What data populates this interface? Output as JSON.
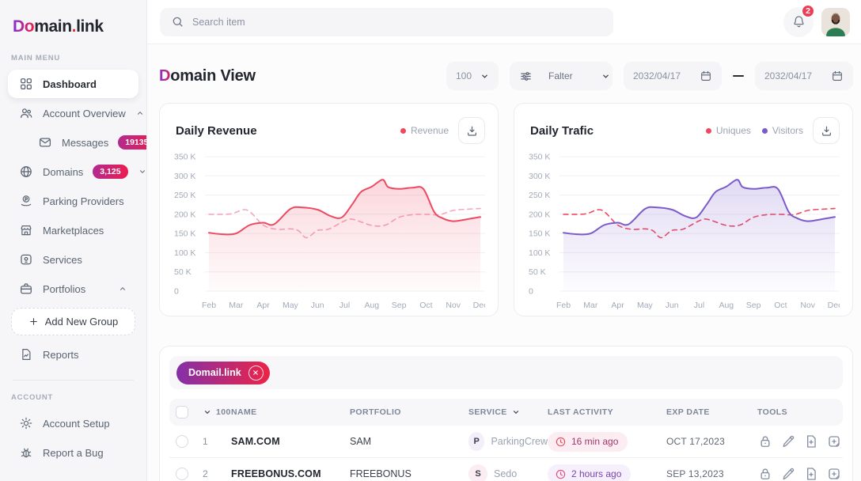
{
  "brand": {
    "logo_do": "Do",
    "logo_main": "main",
    "logo_dot": ".",
    "logo_link": "link"
  },
  "sidebar": {
    "main_section_label": "MAIN MENU",
    "account_section_label": "ACCOUNT",
    "dashboard": "Dashboard",
    "account_overview": "Account Overview",
    "messages": "Messages",
    "messages_badge": "19135",
    "domains": "Domains",
    "domains_badge": "3,125",
    "parking_providers": "Parking Providers",
    "marketplaces": "Marketplaces",
    "services": "Services",
    "portfolios": "Portfolios",
    "add_new_group": "Add New Group",
    "reports": "Reports",
    "account_setup": "Account Setup",
    "report_a_bug": "Report a Bug"
  },
  "topbar": {
    "search_placeholder": "Search item",
    "notification_count": "2"
  },
  "page_header": {
    "title_accent": "D",
    "title_rest": "omain View"
  },
  "filters": {
    "page_size": "100",
    "filter_label": "Falter",
    "date_from": "2032/04/17",
    "date_to": "2032/04/17"
  },
  "chart_data": [
    {
      "type": "line",
      "title": "Daily Revenue",
      "legend_position": "top-right",
      "legend": [
        {
          "label": "Revenue",
          "color": "#EE4961"
        }
      ],
      "x_categories": [
        "Feb",
        "Mar",
        "Apr",
        "May",
        "Jun",
        "Jul",
        "Aug",
        "Sep",
        "Oct",
        "Nov",
        "Dec"
      ],
      "ylabel": "",
      "ylim_k": [
        0,
        350
      ],
      "ytick_labels_top_down": [
        "350 K",
        "300 K",
        "250 K",
        "200 K",
        "150 K",
        "100 K",
        "50 K",
        "0"
      ],
      "grid": "horizontal",
      "series": [
        {
          "name": "Revenue",
          "line_style": "solid",
          "color": "#EE4961",
          "area_fill": true,
          "points_x_month": [
            0,
            0.5,
            1,
            1.5,
            2,
            2.4,
            3,
            3.4,
            4,
            4.5,
            4.9,
            5.3,
            5.6,
            6,
            6.4,
            6.6,
            7,
            7.5,
            7.9,
            8.3,
            8.6,
            9,
            9.5,
            10
          ],
          "points_y_k": [
            152,
            148,
            150,
            172,
            178,
            174,
            214,
            218,
            212,
            195,
            192,
            228,
            258,
            272,
            290,
            271,
            266,
            269,
            266,
            206,
            190,
            182,
            187,
            193
          ]
        },
        {
          "name": "unlabeled dashed comparison",
          "line_style": "dashed",
          "color": "#F5A8BC",
          "area_fill": false,
          "points_x_month": [
            0,
            0.8,
            1.4,
            2,
            2.5,
            3,
            3.3,
            3.6,
            4,
            4.4,
            5,
            5.3,
            6,
            6.5,
            7,
            7.5,
            8,
            8.5,
            9,
            9.5,
            10
          ],
          "points_y_k": [
            200,
            201,
            211,
            172,
            161,
            162,
            157,
            139,
            158,
            161,
            183,
            187,
            171,
            172,
            192,
            199,
            200,
            199,
            210,
            213,
            215
          ]
        }
      ]
    },
    {
      "type": "line",
      "title": "Daily Trafic",
      "legend_position": "top-right",
      "legend": [
        {
          "label": "Uniques",
          "color": "#EE4961"
        },
        {
          "label": "Visitors",
          "color": "#7B5BC9"
        }
      ],
      "x_categories": [
        "Feb",
        "Mar",
        "Apr",
        "May",
        "Jun",
        "Jul",
        "Aug",
        "Sep",
        "Oct",
        "Nov",
        "Dec"
      ],
      "ylabel": "",
      "ylim_k": [
        0,
        350
      ],
      "ytick_labels_top_down": [
        "350 K",
        "300 K",
        "250 K",
        "200 K",
        "150 K",
        "100 K",
        "50 K",
        "0"
      ],
      "grid": "horizontal",
      "series": [
        {
          "name": "Visitors",
          "line_style": "solid",
          "color": "#7B5BC9",
          "area_fill": true,
          "points_x_month": [
            0,
            0.5,
            1,
            1.5,
            2,
            2.4,
            3,
            3.4,
            4,
            4.5,
            4.9,
            5.3,
            5.6,
            6,
            6.4,
            6.6,
            7,
            7.5,
            7.9,
            8.3,
            8.6,
            9,
            9.5,
            10
          ],
          "points_y_k": [
            152,
            148,
            150,
            172,
            178,
            174,
            214,
            218,
            212,
            195,
            192,
            228,
            258,
            272,
            290,
            271,
            266,
            269,
            266,
            206,
            190,
            182,
            187,
            193
          ]
        },
        {
          "name": "Uniques",
          "line_style": "dashed",
          "color": "#F04A60",
          "area_fill": false,
          "points_x_month": [
            0,
            0.8,
            1.4,
            2,
            2.5,
            3,
            3.3,
            3.6,
            4,
            4.4,
            5,
            5.3,
            6,
            6.5,
            7,
            7.5,
            8,
            8.5,
            9,
            9.5,
            10
          ],
          "points_y_k": [
            200,
            201,
            211,
            172,
            161,
            162,
            157,
            139,
            158,
            161,
            183,
            187,
            171,
            172,
            192,
            199,
            200,
            199,
            210,
            213,
            215
          ]
        }
      ]
    }
  ],
  "table": {
    "filter_chip": "Domail.link",
    "headers": {
      "count": "100",
      "name": "NAME",
      "portfolio": "PORTFOLIO",
      "service": "SERVICE",
      "last_activity": "LAST ACTIVITY",
      "exp_date": "EXP DATE",
      "tools": "TOOLS"
    },
    "rows": [
      {
        "num": "1",
        "name": "SAM.COM",
        "portfolio": "SAM",
        "service_initial": "P",
        "service_badge_tone": "lavender",
        "service": "ParkingCrew",
        "activity": "16 min ago",
        "activity_tone": "pink",
        "exp_date": "OCT 17,2023"
      },
      {
        "num": "2",
        "name": "FREEBONUS.COM",
        "portfolio": "FREEBONUS",
        "service_initial": "S",
        "service_badge_tone": "pink",
        "service": "Sedo",
        "activity": "2 hours ago",
        "activity_tone": "purple",
        "exp_date": "SEP 13,2023"
      }
    ]
  },
  "colors": {
    "accent_red": "#EE4961",
    "accent_purple": "#7B5BC9",
    "dashed_pink": "#F5A8BC",
    "brand_gradient": [
      "#8B2FC9",
      "#ED1E4F"
    ],
    "badge_gradient": [
      "#B12B8F",
      "#ED1C4F"
    ],
    "notification_red": "#ED3E56"
  }
}
